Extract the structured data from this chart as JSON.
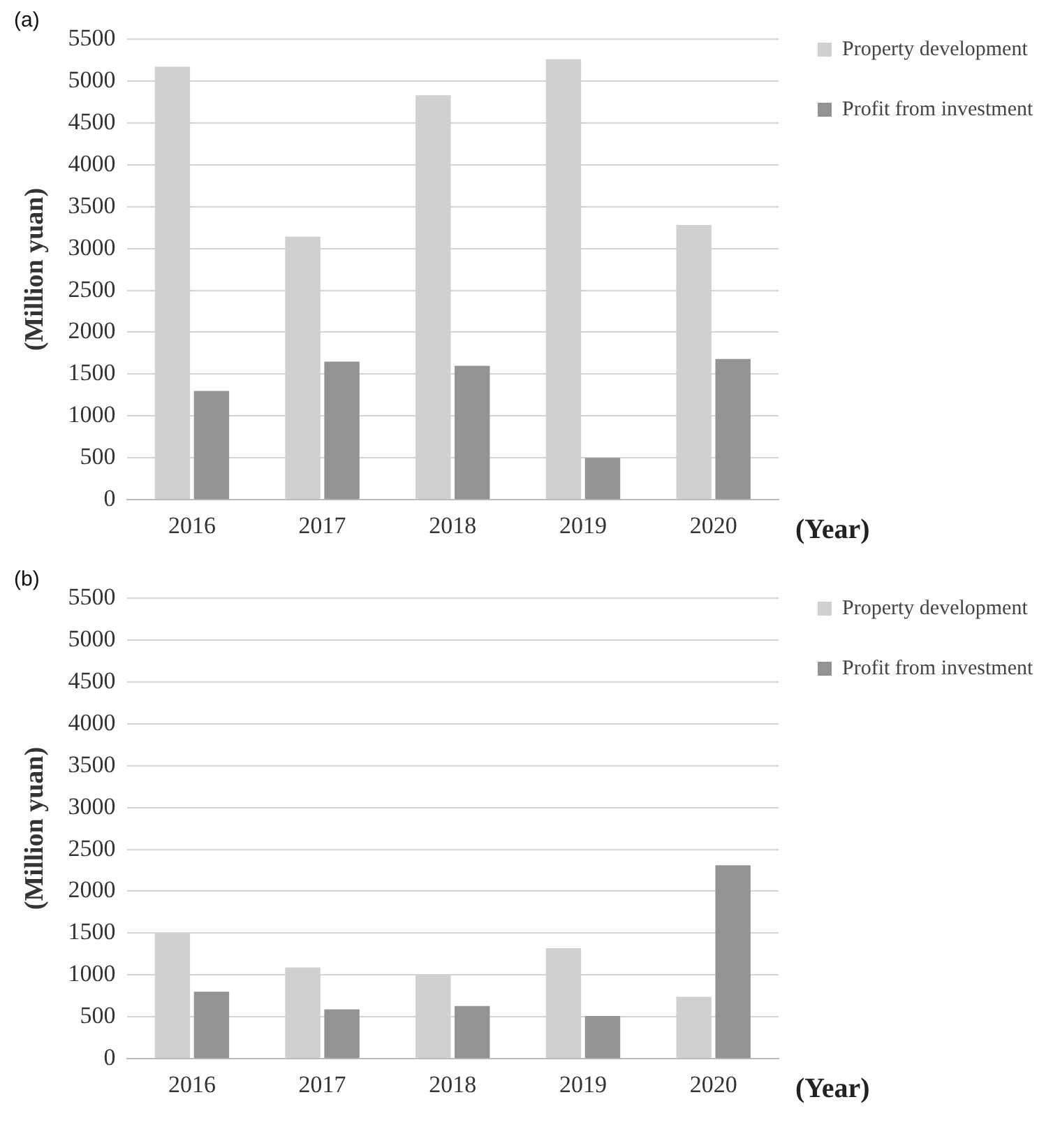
{
  "chart_data": [
    {
      "type": "bar",
      "title": "(a)",
      "xlabel": "(Year)",
      "ylabel": "(Million yuan)",
      "categories": [
        "2016",
        "2017",
        "2018",
        "2019",
        "2020"
      ],
      "series": [
        {
          "name": "Property development",
          "color": "#d0d0d0",
          "values": [
            5170,
            3140,
            4830,
            5260,
            3280
          ]
        },
        {
          "name": "Profit from investment",
          "color": "#939393",
          "values": [
            1300,
            1650,
            1600,
            500,
            1680
          ]
        }
      ],
      "ylim": [
        0,
        5500
      ],
      "yticks": [
        0,
        500,
        1000,
        1500,
        2000,
        2500,
        3000,
        3500,
        4000,
        4500,
        5000,
        5500
      ],
      "grid": "y",
      "legend": "top right"
    },
    {
      "type": "bar",
      "title": "(b)",
      "xlabel": "(Year)",
      "ylabel": "(Million yuan)",
      "categories": [
        "2016",
        "2017",
        "2018",
        "2019",
        "2020"
      ],
      "series": [
        {
          "name": "Property development",
          "color": "#d0d0d0",
          "values": [
            1500,
            1090,
            1000,
            1320,
            740
          ]
        },
        {
          "name": "Profit from investment",
          "color": "#939393",
          "values": [
            800,
            590,
            630,
            510,
            2310
          ]
        }
      ],
      "ylim": [
        0,
        5500
      ],
      "yticks": [
        0,
        500,
        1000,
        1500,
        2000,
        2500,
        3000,
        3500,
        4000,
        4500,
        5000,
        5500
      ],
      "grid": "y",
      "legend": "top right"
    }
  ]
}
